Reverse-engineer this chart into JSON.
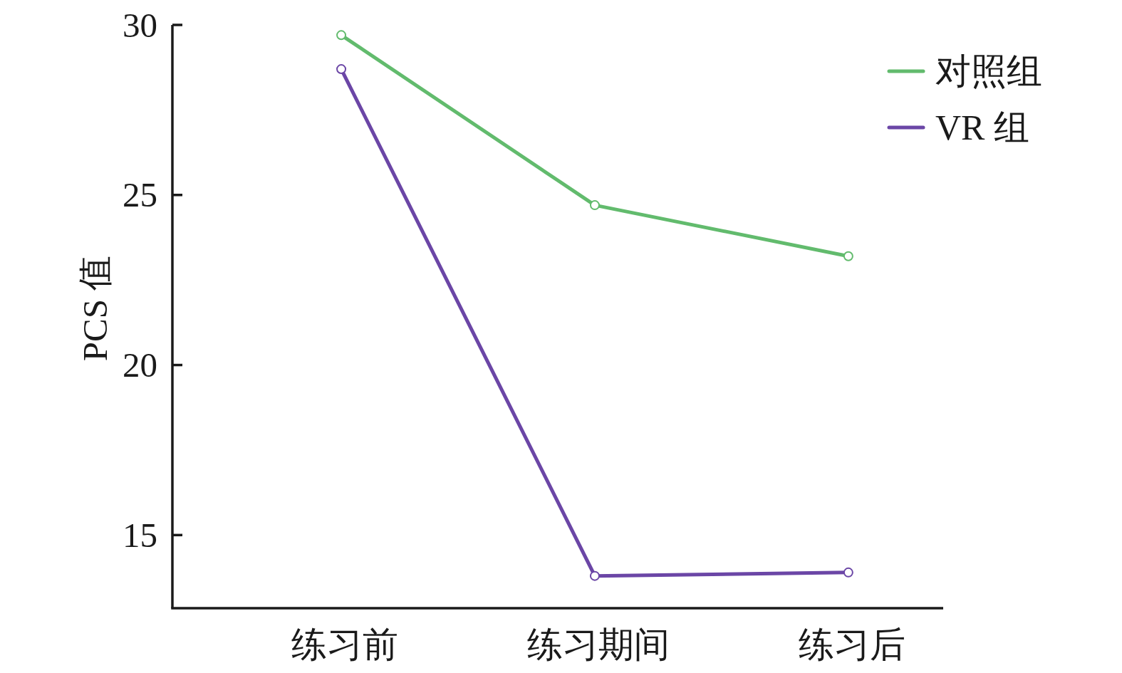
{
  "chart_data": {
    "type": "line",
    "ylabel": "PCS 值",
    "categories": [
      "练习前",
      "练习期间",
      "练习后"
    ],
    "series": [
      {
        "name": "对照组",
        "color": "#62bb6d",
        "values": [
          29.7,
          24.7,
          23.2
        ]
      },
      {
        "name": "VR 组",
        "color": "#6b46a6",
        "values": [
          28.7,
          13.8,
          13.9
        ]
      }
    ],
    "ylim": [
      12.85,
      30
    ],
    "yticks": [
      15,
      20,
      25,
      30
    ],
    "legend": "top right",
    "marker": "circle",
    "line_style": "solid"
  }
}
